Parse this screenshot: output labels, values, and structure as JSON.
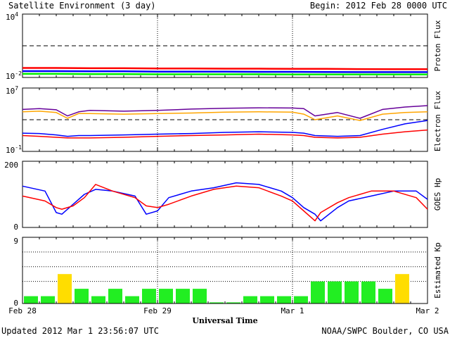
{
  "header": {
    "title": "Satellite Environment (3 day)",
    "begin": "Begin:  2012 Feb 28 0000 UTC"
  },
  "footer": {
    "updated": "Updated 2012 Mar  1 23:56:07 UTC",
    "credit": "NOAA/SWPC Boulder, CO USA"
  },
  "colors": {
    "red": "#ff0000",
    "blue": "#0000ff",
    "green": "#00ee00",
    "purple": "#660099",
    "orange": "#ffa500",
    "kp_normal": "#22ee22",
    "kp_storm": "#ffdd00"
  },
  "chart_data": [
    {
      "type": "line",
      "ylabel": "Proton Flux",
      "y_scale": "log",
      "ytick_labels": [
        {
          "base": "10",
          "exp": "4",
          "value": 10000
        },
        {
          "base": "10",
          "exp": "-2",
          "value": 0.01
        }
      ],
      "ylim": [
        0.01,
        10000
      ],
      "threshold_line": 10,
      "x": [
        0,
        6,
        12,
        18,
        24,
        30,
        36,
        42,
        48,
        54,
        60,
        66,
        72
      ],
      "series": [
        {
          "color": "red",
          "values": [
            0.08,
            0.08,
            0.075,
            0.075,
            0.07,
            0.07,
            0.068,
            0.068,
            0.065,
            0.065,
            0.062,
            0.06,
            0.06
          ]
        },
        {
          "color": "blue",
          "values": [
            0.04,
            0.04,
            0.038,
            0.038,
            0.036,
            0.036,
            0.035,
            0.034,
            0.034,
            0.033,
            0.032,
            0.032,
            0.032
          ]
        },
        {
          "color": "green",
          "values": [
            0.022,
            0.022,
            0.021,
            0.021,
            0.02,
            0.02,
            0.02,
            0.02,
            0.019,
            0.019,
            0.019,
            0.019,
            0.019
          ]
        }
      ]
    },
    {
      "type": "line",
      "ylabel": "Electron Flux",
      "y_scale": "log",
      "ytick_labels": [
        {
          "base": "10",
          "exp": "7",
          "value": 10000000
        },
        {
          "base": "10",
          "exp": "-1",
          "value": 0.1
        }
      ],
      "ylim": [
        0.1,
        10000000
      ],
      "threshold_line": 1000,
      "x": [
        0,
        3,
        6,
        8,
        10,
        12,
        18,
        24,
        30,
        36,
        42,
        48,
        50,
        52,
        56,
        60,
        64,
        68,
        72
      ],
      "series": [
        {
          "color": "purple",
          "values": [
            20000,
            25000,
            18000,
            3000,
            10000,
            15000,
            12000,
            15000,
            22000,
            28000,
            32000,
            30000,
            25000,
            3000,
            8000,
            1500,
            20000,
            40000,
            60000
          ]
        },
        {
          "color": "orange",
          "values": [
            10000,
            12000,
            8000,
            1500,
            6000,
            6000,
            5000,
            6000,
            7000,
            9000,
            10000,
            9000,
            5000,
            1000,
            3000,
            800,
            5000,
            8000,
            10000
          ]
        },
        {
          "color": "blue",
          "values": [
            20,
            18,
            12,
            8,
            10,
            10,
            12,
            15,
            18,
            25,
            30,
            25,
            20,
            10,
            8,
            10,
            60,
            300,
            800
          ]
        },
        {
          "color": "red",
          "values": [
            10,
            8,
            6,
            5,
            5,
            5,
            6,
            8,
            10,
            12,
            15,
            12,
            10,
            6,
            5,
            6,
            15,
            30,
            50
          ]
        }
      ]
    },
    {
      "type": "line",
      "ylabel": "GOES Hp",
      "y_scale": "linear",
      "ytick_labels": [
        {
          "label": "200",
          "value": 200
        },
        {
          "label": "0",
          "value": 0
        }
      ],
      "ylim": [
        0,
        200
      ],
      "x": [
        0,
        4,
        6,
        7,
        9,
        11,
        13,
        16,
        20,
        22,
        24,
        26,
        30,
        34,
        38,
        42,
        46,
        48,
        50,
        52,
        53,
        56,
        58,
        62,
        66,
        70,
        72
      ],
      "series": [
        {
          "color": "blue",
          "values": [
            125,
            110,
            45,
            40,
            70,
            100,
            115,
            110,
            95,
            40,
            50,
            90,
            110,
            120,
            135,
            130,
            110,
            90,
            60,
            40,
            20,
            60,
            80,
            95,
            110,
            110,
            85
          ]
        },
        {
          "color": "red",
          "values": [
            95,
            80,
            60,
            55,
            65,
            90,
            130,
            110,
            90,
            65,
            60,
            70,
            95,
            115,
            125,
            120,
            95,
            80,
            50,
            20,
            45,
            75,
            90,
            110,
            110,
            90,
            55
          ]
        }
      ]
    },
    {
      "type": "bar",
      "ylabel": "Estimated Kp",
      "ytick_labels": [
        {
          "label": "9",
          "value": 9
        },
        {
          "label": "0",
          "value": 0
        }
      ],
      "ylim": [
        0,
        9
      ],
      "bar_hours": 3,
      "values": [
        1,
        1,
        4,
        2,
        1,
        2,
        1,
        2,
        2,
        2,
        2,
        0.15,
        0.15,
        1,
        1,
        1,
        1,
        3,
        3,
        3,
        3,
        2,
        4,
        0
      ],
      "storm_threshold": 4
    }
  ],
  "x_axis": {
    "label": "Universal Time",
    "xlim": [
      0,
      72
    ],
    "ticks": [
      {
        "label": "Feb 28",
        "hour": 0
      },
      {
        "label": "Feb 29",
        "hour": 24
      },
      {
        "label": "Mar 1",
        "hour": 48
      },
      {
        "label": "Mar 2",
        "hour": 72
      }
    ]
  }
}
